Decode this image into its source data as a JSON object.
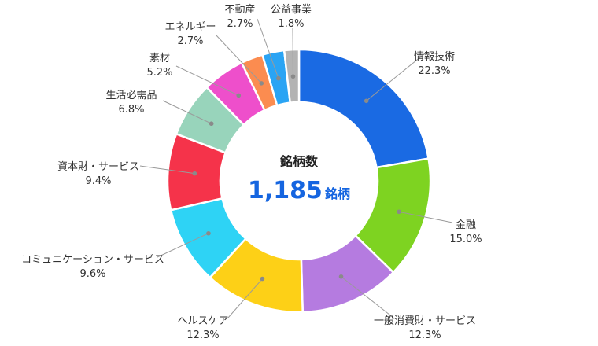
{
  "chart_data": {
    "type": "pie",
    "style": "donut",
    "center": {
      "title": "銘柄数",
      "value": "1,185",
      "unit": "銘柄"
    },
    "slices": [
      {
        "name": "情報技術",
        "value": 22.3,
        "label": "22.3%",
        "color": "#1a6ae3"
      },
      {
        "name": "金融",
        "value": 15.0,
        "label": "15.0%",
        "color": "#7ed321"
      },
      {
        "name": "一般消費財・サービス",
        "value": 12.3,
        "label": "12.3%",
        "color": "#b57be0"
      },
      {
        "name": "ヘルスケア",
        "value": 12.3,
        "label": "12.3%",
        "color": "#fdd017"
      },
      {
        "name": "コミュニケーション・サービス",
        "value": 9.6,
        "label": "9.6%",
        "color": "#2ed3f5"
      },
      {
        "name": "資本財・サービス",
        "value": 9.4,
        "label": "9.4%",
        "color": "#f5334a"
      },
      {
        "name": "生活必需品",
        "value": 6.8,
        "label": "6.8%",
        "color": "#98d4bb"
      },
      {
        "name": "素材",
        "value": 5.2,
        "label": "5.2%",
        "color": "#ee4fcb"
      },
      {
        "name": "エネルギー",
        "value": 2.7,
        "label": "2.7%",
        "color": "#fb8c50"
      },
      {
        "name": "不動産",
        "value": 2.7,
        "label": "2.7%",
        "color": "#2aa4f4"
      },
      {
        "name": "公益事業",
        "value": 1.8,
        "label": "1.8%",
        "color": "#b3b3b3"
      }
    ]
  }
}
